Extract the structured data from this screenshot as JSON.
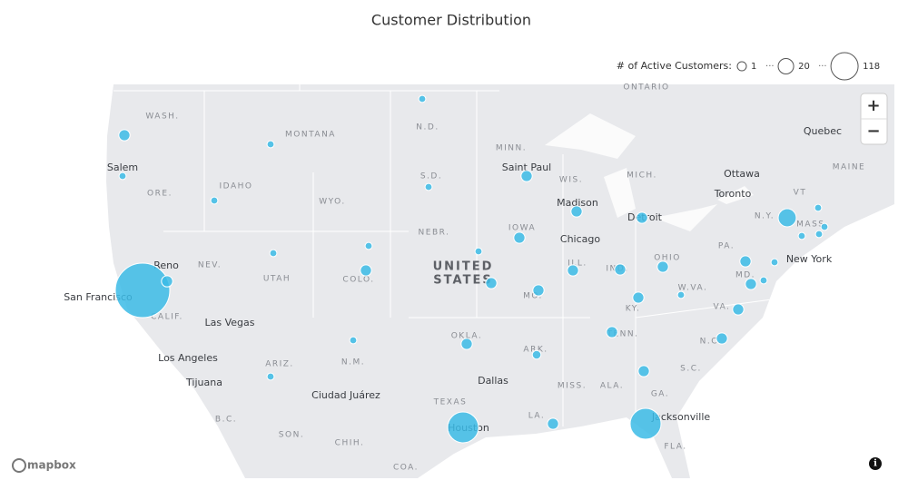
{
  "header": {
    "title": "Customer Distribution"
  },
  "legend": {
    "label": "# of Active Customers:",
    "separator": "···",
    "sizes": [
      1,
      20,
      118
    ]
  },
  "controls": {
    "zoom_in": "+",
    "zoom_out": "−",
    "info": "i",
    "attribution": "mapbox"
  },
  "map": {
    "labels": [
      "ONTARIO",
      "WASH.",
      "MONTANA",
      "N.D.",
      "MINN.",
      "Quebec",
      "MICH.",
      "Ottawa",
      "MAINE",
      "Saint Paul",
      "WIS.",
      "Salem",
      "ORE.",
      "IDAHO",
      "WYO.",
      "S.D.",
      "Madison",
      "Toronto",
      "VT",
      "N.Y.",
      "MASS.",
      "Detroit",
      "IOWA",
      "NEBR.",
      "Chicago",
      "PA.",
      "NEV.",
      "Reno",
      "UTAH",
      "COLO.",
      "UNITED",
      "STATES",
      "ILL.",
      "IND.",
      "OHIO",
      "New York",
      "San Francisco",
      "MD.",
      "W.VA.",
      "MO.",
      "CALIF.",
      "Las Vegas",
      "KY.",
      "VA.",
      "TENN.",
      "OKLA.",
      "N.C.",
      "ARK.",
      "Los Angeles",
      "ARIZ.",
      "N.M.",
      "S.C.",
      "Tijuana",
      "Dallas",
      "MISS.",
      "ALA.",
      "Ciudad Juárez",
      "GA.",
      "TEXAS",
      "B.C.",
      "LA.",
      "Houston",
      "Jacksonville",
      "SON.",
      "CHIH.",
      "FLA.",
      "COA."
    ],
    "bubbles": [
      2,
      5,
      2,
      2,
      2,
      2,
      5,
      5,
      5,
      13,
      2,
      2,
      2,
      2,
      5,
      2,
      2,
      2,
      5,
      5,
      118,
      5,
      5,
      5,
      5,
      5,
      2,
      5,
      2,
      5,
      5,
      2,
      5,
      5,
      2,
      5,
      5,
      3,
      2,
      5,
      38,
      5,
      38
    ]
  }
}
